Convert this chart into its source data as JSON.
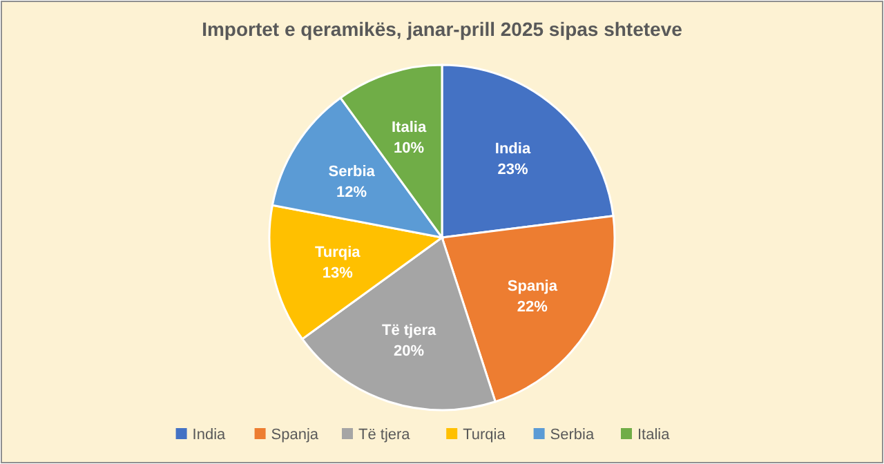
{
  "chart_data": {
    "type": "pie",
    "title": "Importet e qeramikës, janar-prill 2025 sipas shteteve",
    "categories": [
      "India",
      "Spanja",
      "Të tjera",
      "Turqia",
      "Serbia",
      "Italia"
    ],
    "values": [
      23,
      22,
      20,
      13,
      12,
      10
    ],
    "colors": [
      "#4472c4",
      "#ed7d31",
      "#a5a5a5",
      "#ffc000",
      "#5b9bd5",
      "#70ad47"
    ],
    "value_labels": [
      "23%",
      "22%",
      "20%",
      "13%",
      "12%",
      "10%"
    ],
    "legend": "bottom"
  }
}
